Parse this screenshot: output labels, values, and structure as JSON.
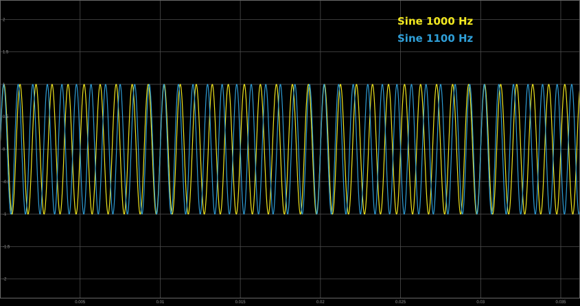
{
  "chart_data": {
    "type": "line",
    "title": "",
    "xlabel": "",
    "ylabel": "",
    "xlim": [
      0,
      0.0362
    ],
    "ylim": [
      -2.3,
      2.3
    ],
    "grid": true,
    "legend_position": "top-right",
    "x_ticks": [
      "0.005",
      "0.01",
      "0.015",
      "0.02",
      "0.025",
      "0.03",
      "0.035"
    ],
    "y_ticks": [
      "2",
      "1.5",
      "1",
      "0.5",
      "0",
      "-0.5",
      "-1",
      "-1.5",
      "-2"
    ],
    "series": [
      {
        "name": "Sine 1000 Hz",
        "frequency_hz": 1000,
        "amplitude": 1,
        "color": "#f2e820"
      },
      {
        "name": "Sine 1100 Hz",
        "frequency_hz": 1100,
        "amplitude": 1,
        "color": "#2f9fd8"
      }
    ],
    "background": "#000000"
  }
}
